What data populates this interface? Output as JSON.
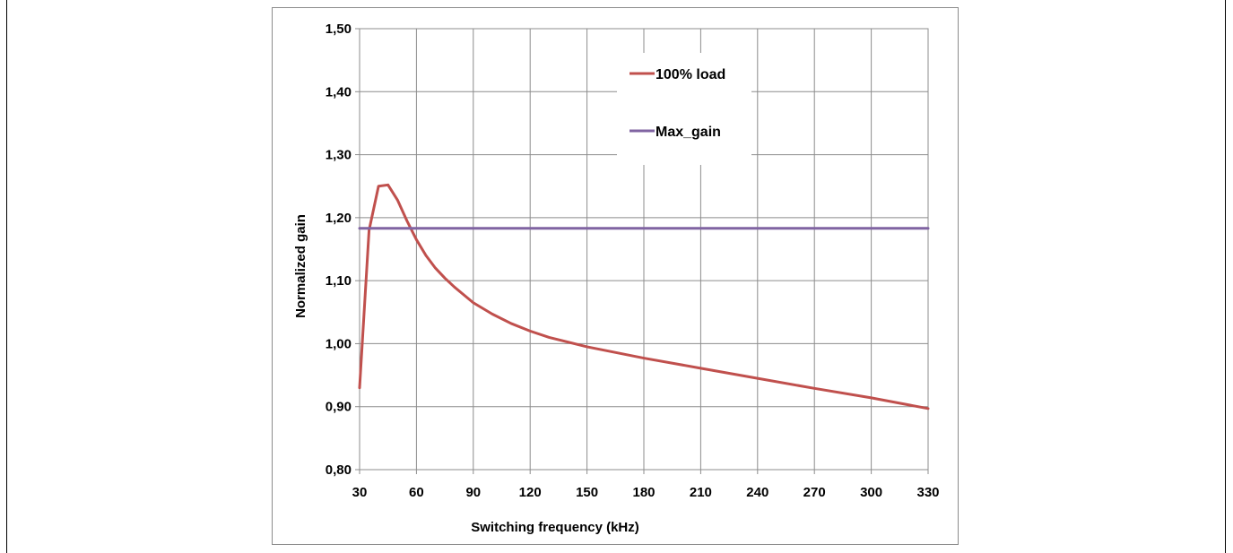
{
  "chart_data": {
    "type": "line",
    "title": "",
    "xlabel": "Switching frequency (kHz)",
    "ylabel": "Normalized gain",
    "xlim": [
      30,
      330
    ],
    "ylim": [
      0.8,
      1.5
    ],
    "x_ticks": [
      "30",
      "60",
      "90",
      "120",
      "150",
      "180",
      "210",
      "240",
      "270",
      "300",
      "330"
    ],
    "y_ticks": [
      "0,80",
      "0,90",
      "1,00",
      "1,10",
      "1,20",
      "1,30",
      "1,40",
      "1,50"
    ],
    "grid": true,
    "legend_position": "top-right",
    "series": [
      {
        "name": "100% load",
        "color": "#c0504d",
        "x": [
          30,
          35,
          40,
          45,
          50,
          55,
          60,
          65,
          70,
          75,
          80,
          90,
          100,
          110,
          120,
          130,
          150,
          180,
          210,
          240,
          270,
          300,
          330
        ],
        "y": [
          0.93,
          1.18,
          1.25,
          1.252,
          1.228,
          1.195,
          1.165,
          1.14,
          1.12,
          1.104,
          1.09,
          1.065,
          1.047,
          1.032,
          1.02,
          1.01,
          0.995,
          0.977,
          0.961,
          0.945,
          0.929,
          0.914,
          0.897
        ]
      },
      {
        "name": "Max_gain",
        "color": "#8064a2",
        "x": [
          30,
          330
        ],
        "y": [
          1.183,
          1.183
        ]
      }
    ]
  }
}
